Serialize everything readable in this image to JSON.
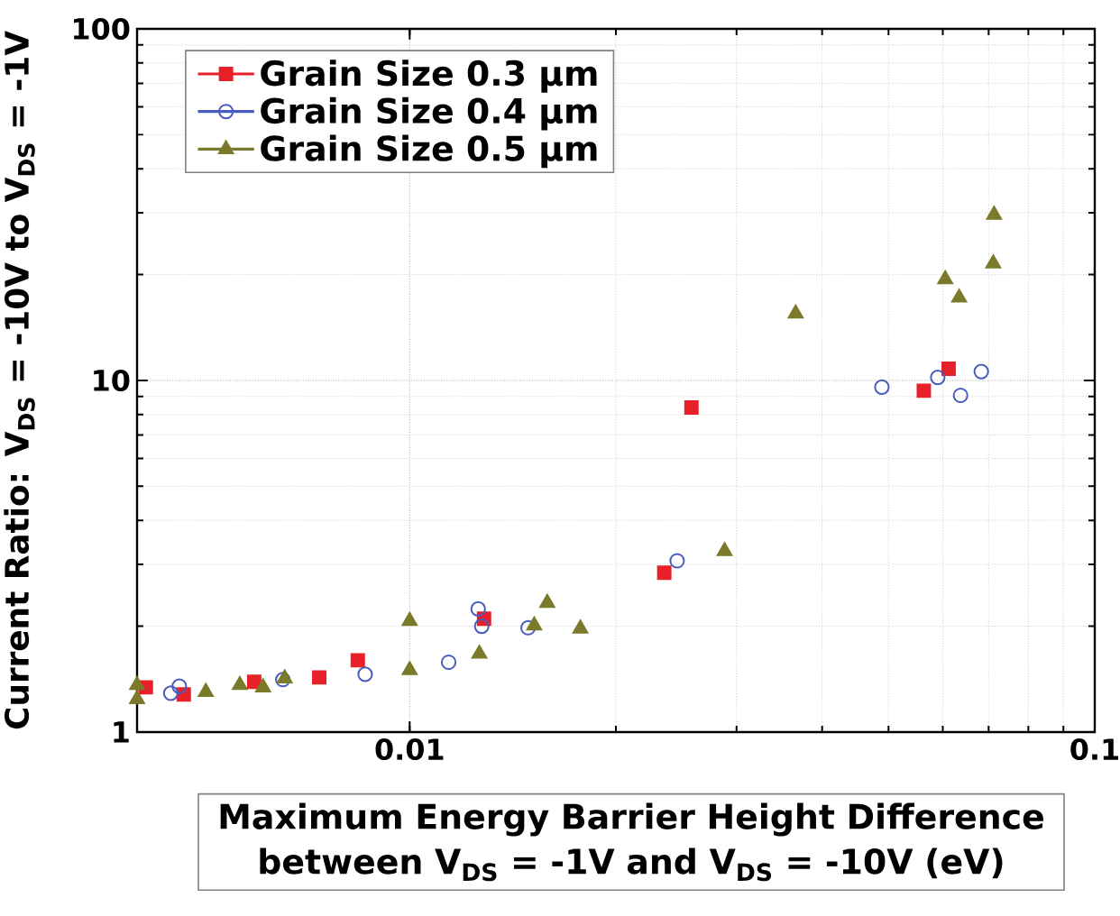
{
  "chart_data": {
    "type": "scatter",
    "xlabel": "Maximum Energy Barrier Height Difference between V$_{DS}$ = -1V and V$_{DS}$ = -10V (eV)",
    "ylabel": "Current Ratio: V$_{DS}$ = -10V to V$_{DS}$ = -1V",
    "log": "xy",
    "xlim": [
      0.004,
      0.1
    ],
    "ylim": [
      1,
      100
    ],
    "xticks": [
      0.01,
      0.1
    ],
    "yticks": [
      1,
      10,
      100
    ],
    "grid": true,
    "legend": "top left",
    "series": [
      {
        "name": "Grain Size 0.3 µm",
        "color": "#e8202a",
        "marker": "square",
        "x": [
          0.00412,
          0.00468,
          0.00593,
          0.00738,
          0.0084,
          0.01284,
          0.02353,
          0.02578,
          0.0563,
          0.0612
        ],
        "values": [
          1.34,
          1.28,
          1.39,
          1.43,
          1.6,
          2.1,
          2.84,
          8.38,
          9.35,
          10.8
        ]
      },
      {
        "name": "Grain Size 0.4 µm",
        "color": "#4a5bbf",
        "marker": "circle",
        "x": [
          0.00448,
          0.00461,
          0.00653,
          0.00861,
          0.0114,
          0.01259,
          0.01274,
          0.01489,
          0.02457,
          0.0489,
          0.059,
          0.0637,
          0.0683
        ],
        "values": [
          1.29,
          1.35,
          1.41,
          1.46,
          1.58,
          2.24,
          2.0,
          1.98,
          3.07,
          9.57,
          10.2,
          9.07,
          10.6
        ]
      },
      {
        "name": "Grain Size 0.5 µm",
        "color": "#7a7a2a",
        "marker": "triangle",
        "x": [
          0.004,
          0.004,
          0.00504,
          0.00565,
          0.00611,
          0.00657,
          0.01,
          0.01,
          0.01264,
          0.0152,
          0.01588,
          0.01775,
          0.02882,
          0.0366,
          0.0605,
          0.0634,
          0.0711,
          0.0713
        ],
        "values": [
          1.36,
          1.24,
          1.3,
          1.36,
          1.34,
          1.42,
          1.5,
          2.07,
          1.67,
          2.01,
          2.33,
          1.97,
          3.27,
          15.5,
          19.4,
          17.2,
          21.5,
          29.6
        ]
      }
    ]
  }
}
